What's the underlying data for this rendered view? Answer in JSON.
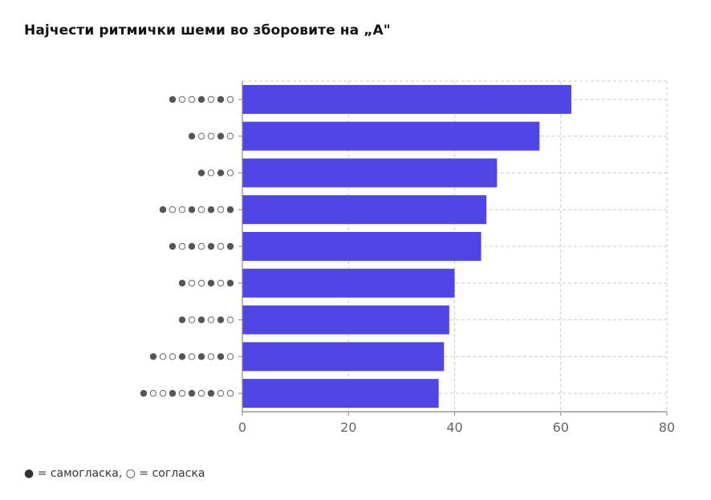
{
  "chart_data": {
    "type": "bar",
    "orientation": "horizontal",
    "title": "Најчести ритмички шеми во зборовите на „А\"",
    "categories": [
      "●○○●○●○",
      "●○○●○",
      "●○●○",
      "●○○●○●○●",
      "●○●○●○●",
      "●○○●○●",
      "●○●○●○",
      "●○○●○●○●○",
      "●○○●○●○●○○"
    ],
    "values": [
      62,
      56,
      48,
      46,
      45,
      40,
      39,
      38,
      37
    ],
    "x_ticks": [
      "0",
      "20",
      "40",
      "60",
      "80"
    ],
    "xlim": [
      0,
      80
    ],
    "xlabel": "",
    "ylabel": "",
    "grid": true,
    "bar_color": "#4f46e5",
    "filled_dot_color": "#555555"
  },
  "note": "● = самогласка, ○ = согласка"
}
